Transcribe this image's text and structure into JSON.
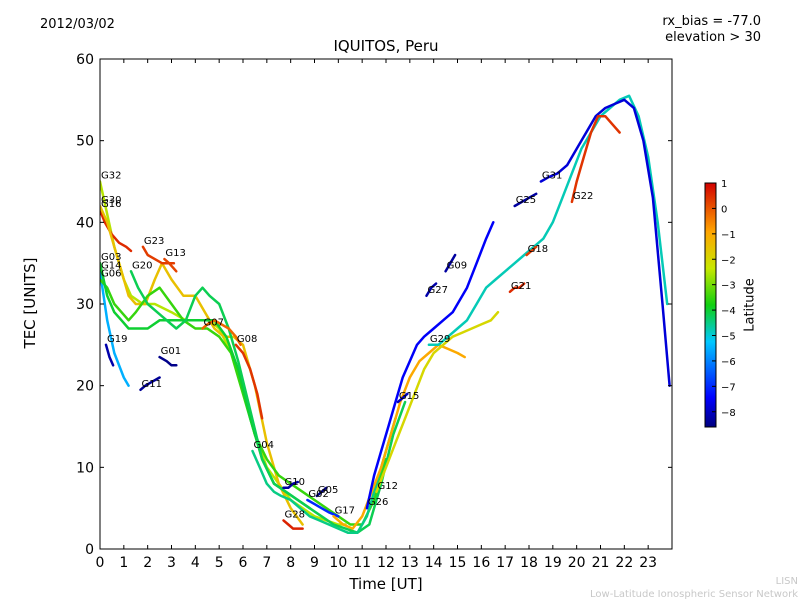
{
  "header": {
    "date": "2012/03/02",
    "rx_bias": "rx_bias = -77.0",
    "elevation": "elevation > 30"
  },
  "footer": {
    "line1": "LISN",
    "line2": "Low-Latitude Ionospheric Sensor Network"
  },
  "chart_data": {
    "type": "line",
    "title": "IQUITOS, Peru",
    "xlabel": "Time [UT]",
    "ylabel": "TEC [UNITS]",
    "xlim": [
      0,
      24
    ],
    "ylim": [
      0,
      60
    ],
    "xticks": [
      0,
      1,
      2,
      3,
      4,
      5,
      6,
      7,
      8,
      9,
      10,
      11,
      12,
      13,
      14,
      15,
      16,
      17,
      18,
      19,
      20,
      21,
      22,
      23
    ],
    "yticks": [
      0,
      10,
      20,
      30,
      40,
      50,
      60
    ],
    "colorbar": {
      "label": "Latitude",
      "range": [
        -8.6,
        1.0
      ],
      "ticks": [
        1,
        0,
        -1,
        -2,
        -3,
        -4,
        -5,
        -6,
        -7,
        -8
      ]
    },
    "series": [
      {
        "name": "G32",
        "lat": -2.5,
        "x": [
          0,
          0.3,
          0.6,
          1.0,
          1.3,
          1.8,
          2.3,
          3.0,
          3.6,
          4.2,
          4.6,
          5.0,
          5.5,
          6.0,
          6.5,
          7.0,
          7.5,
          8.0,
          8.5,
          9.0,
          9.5,
          10.0,
          10.3
        ],
        "y": [
          45,
          41,
          37,
          33,
          31,
          30,
          30,
          29,
          28,
          28,
          28,
          27,
          24,
          20,
          14,
          10,
          8,
          6,
          5,
          4,
          3.5,
          3,
          3
        ]
      },
      {
        "name": "G16",
        "lat": 0.5,
        "x": [
          0,
          0.2,
          0.5,
          0.8,
          1.1,
          1.3
        ],
        "y": [
          41.5,
          40,
          38.5,
          37.5,
          37,
          36.5
        ]
      },
      {
        "name": "G30",
        "lat": -1.5,
        "x": [
          0,
          0.3,
          0.6,
          0.9,
          1.2,
          1.5,
          1.9,
          2.3,
          2.6,
          3.0,
          3.5,
          4.0,
          4.4,
          4.8,
          5.2,
          5.6,
          6.0,
          6.5,
          7.0,
          7.5,
          8.0,
          8.5
        ],
        "y": [
          42,
          40,
          37,
          34,
          31,
          30,
          30,
          33,
          35,
          33,
          31,
          31,
          29,
          27,
          26,
          26,
          25,
          20,
          13,
          8,
          5,
          3
        ]
      },
      {
        "name": "G14",
        "lat": -5.5,
        "x": [
          0,
          0.3,
          0.6,
          1.0,
          1.2
        ],
        "y": [
          34,
          28,
          24,
          21,
          20
        ]
      },
      {
        "name": "G06",
        "lat": -3.5,
        "x": [
          0,
          0.3,
          0.6,
          0.9,
          1.2,
          1.5,
          2.0,
          2.5,
          3.0,
          3.5,
          4.0,
          4.5,
          5.0,
          5.5,
          6.0,
          6.5,
          7.0,
          7.5,
          8.0,
          8.5,
          9.0,
          9.5,
          10.0,
          10.5,
          11.0,
          11.5,
          12.0
        ],
        "y": [
          33,
          32,
          30,
          29,
          28,
          29,
          31,
          32,
          30,
          28,
          27,
          27,
          26,
          24,
          19,
          14,
          11,
          9,
          8,
          7,
          6,
          5,
          4,
          3,
          3,
          6,
          11
        ]
      },
      {
        "name": "G03",
        "lat": -4.0,
        "x": [
          0,
          0.3,
          0.6,
          0.9,
          1.2,
          1.5,
          2.0,
          2.5,
          3.0,
          3.5,
          4.0,
          4.3,
          4.8,
          5.3,
          5.8,
          6.3,
          6.8,
          7.3,
          7.8,
          8.3,
          8.8
        ],
        "y": [
          35,
          31,
          29,
          28,
          27,
          27,
          27,
          28,
          28,
          28,
          28,
          28,
          28,
          26,
          22,
          16,
          11,
          8,
          7,
          6,
          5
        ]
      },
      {
        "name": "G19",
        "lat": -8.2,
        "x": [
          0.25,
          0.4,
          0.55
        ],
        "y": [
          25,
          23.5,
          22.5
        ]
      },
      {
        "name": "G23",
        "lat": 0.3,
        "x": [
          1.8,
          2.0,
          2.3,
          2.6,
          2.9,
          3.1
        ],
        "y": [
          37,
          36,
          35.5,
          35,
          35,
          35
        ]
      },
      {
        "name": "G20",
        "lat": -4.2,
        "x": [
          1.3,
          1.6,
          2.0,
          2.4,
          2.8,
          3.2,
          3.6,
          4.0,
          4.3,
          4.6,
          5.0,
          5.4,
          5.8,
          6.3,
          6.8,
          7.3,
          7.8,
          8.3,
          8.8,
          9.3,
          9.8,
          10.3,
          10.8,
          11.3,
          11.8,
          12.3,
          12.8
        ],
        "y": [
          34,
          32,
          30,
          29,
          28,
          27,
          28,
          31,
          32,
          31,
          30,
          27,
          23,
          17,
          11,
          8,
          7,
          6,
          5,
          4,
          3,
          2.5,
          2,
          3,
          8,
          14,
          18
        ]
      },
      {
        "name": "G13",
        "lat": 0.2,
        "x": [
          2.7,
          2.9,
          3.2
        ],
        "y": [
          35.5,
          35,
          34
        ]
      },
      {
        "name": "G01",
        "lat": -8.5,
        "x": [
          2.5,
          2.8,
          3.0,
          3.2
        ],
        "y": [
          23.5,
          23,
          22.5,
          22.5
        ]
      },
      {
        "name": "G11",
        "lat": -8.4,
        "x": [
          1.7,
          1.9,
          2.2,
          2.5
        ],
        "y": [
          19.5,
          20,
          20.5,
          21
        ]
      },
      {
        "name": "G07",
        "lat": -0.2,
        "x": [
          4.3,
          4.5,
          4.8,
          5.1,
          5.4,
          5.7,
          5.9
        ],
        "y": [
          27,
          27.5,
          28,
          27.5,
          27,
          26,
          25
        ]
      },
      {
        "name": "G08",
        "lat": 0.4,
        "x": [
          5.7,
          6.0,
          6.3,
          6.6,
          6.8
        ],
        "y": [
          25,
          24,
          22,
          19,
          16
        ]
      },
      {
        "name": "G04",
        "lat": -4.5,
        "x": [
          6.4,
          6.7,
          7.0,
          7.3,
          7.6,
          8.0,
          8.4,
          8.8,
          9.2,
          9.6,
          10.0,
          10.4,
          10.8,
          11.2,
          11.6,
          12.0,
          12.4
        ],
        "y": [
          12,
          10,
          8,
          7,
          6.5,
          6,
          5,
          4,
          3.5,
          3,
          2.5,
          2,
          2,
          4,
          8,
          12,
          16
        ]
      },
      {
        "name": "G10",
        "lat": -8.3,
        "x": [
          7.7,
          7.9,
          8.1,
          8.3
        ],
        "y": [
          7.5,
          7.5,
          8,
          8.2
        ]
      },
      {
        "name": "G02",
        "lat": -7.0,
        "x": [
          8.7,
          9.0,
          9.3,
          9.6,
          10.0
        ],
        "y": [
          6,
          5.5,
          5,
          4.5,
          4
        ]
      },
      {
        "name": "G05",
        "lat": -8.6,
        "x": [
          9.1,
          9.3,
          9.5
        ],
        "y": [
          6.5,
          7,
          7.5
        ]
      },
      {
        "name": "G28",
        "lat": 0.6,
        "x": [
          7.7,
          7.9,
          8.1,
          8.3,
          8.5
        ],
        "y": [
          3.5,
          3,
          2.5,
          2.5,
          2.5
        ]
      },
      {
        "name": "G17",
        "lat": -1.0,
        "x": [
          9.8,
          10.2,
          10.6,
          11.0,
          11.4,
          11.8,
          12.2,
          12.6,
          13.0,
          13.4,
          13.8,
          14.2,
          14.6,
          15.0,
          15.3
        ],
        "y": [
          4,
          3,
          2.5,
          4,
          7,
          10,
          14,
          18,
          21,
          23,
          24,
          25,
          24.5,
          24,
          23.5
        ]
      },
      {
        "name": "G26",
        "lat": -7.5,
        "x": [
          11.2,
          11.5,
          11.8,
          12.1,
          12.4,
          12.7,
          13.0,
          13.3,
          13.6,
          14.0,
          14.4,
          14.8,
          15.0,
          15.4,
          15.8,
          16.2,
          16.5
        ],
        "y": [
          5,
          9,
          12,
          15,
          18,
          21,
          23,
          25,
          26,
          27,
          28,
          29,
          30,
          32,
          35,
          38,
          40
        ]
      },
      {
        "name": "G12",
        "lat": -2.0,
        "x": [
          11.6,
          12.0,
          12.4,
          12.8,
          13.2,
          13.6,
          14.0,
          14.4,
          14.8,
          15.2,
          15.6,
          16.0,
          16.4,
          16.7
        ],
        "y": [
          7,
          10,
          13,
          16,
          19,
          22,
          24,
          25,
          26,
          26.5,
          27,
          27.5,
          28,
          29
        ]
      },
      {
        "name": "G15",
        "lat": -8.0,
        "x": [
          12.5,
          12.7,
          12.9
        ],
        "y": [
          18,
          18.5,
          19
        ]
      },
      {
        "name": "G27",
        "lat": -8.2,
        "x": [
          13.7,
          13.9,
          14.1
        ],
        "y": [
          31,
          32,
          32.5
        ]
      },
      {
        "name": "G09",
        "lat": -8.3,
        "x": [
          14.5,
          14.7,
          14.9
        ],
        "y": [
          34,
          35,
          36
        ]
      },
      {
        "name": "G29",
        "lat": -4.8,
        "x": [
          13.8,
          14.2,
          14.6,
          15.0,
          15.4,
          15.8,
          16.2,
          16.6,
          17.0,
          17.4,
          17.8,
          18.2,
          18.6,
          19.0,
          19.4,
          19.8,
          20.2,
          20.6,
          21.0,
          21.4,
          21.8,
          22.2,
          22.6,
          23.0,
          23.4,
          23.8
        ],
        "y": [
          25,
          25,
          26,
          27,
          28,
          30,
          32,
          33,
          34,
          35,
          36,
          37,
          38,
          40,
          43,
          46,
          49,
          51,
          53,
          54,
          55,
          55.5,
          53,
          48,
          40,
          30
        ]
      },
      {
        "name": "G21",
        "lat": 0.5,
        "x": [
          17.2,
          17.4,
          17.6,
          17.8
        ],
        "y": [
          31.5,
          32,
          32,
          32.5
        ]
      },
      {
        "name": "G25",
        "lat": -8.3,
        "x": [
          17.4,
          17.7,
          18.0,
          18.3
        ],
        "y": [
          42,
          42.5,
          43,
          43.5
        ]
      },
      {
        "name": "G18",
        "lat": 0.3,
        "x": [
          17.9,
          18.1,
          18.3
        ],
        "y": [
          36,
          36.5,
          37
        ]
      },
      {
        "name": "G31",
        "lat": -7.8,
        "x": [
          18.5,
          18.8,
          19.2,
          19.6,
          20.0,
          20.4,
          20.8,
          21.2,
          21.6,
          22.0,
          22.4,
          22.8,
          23.2,
          23.6,
          23.9
        ],
        "y": [
          45,
          45.5,
          46,
          47,
          49,
          51,
          53,
          54,
          54.5,
          55,
          54,
          50,
          43,
          30,
          20
        ]
      },
      {
        "name": "G22",
        "lat": 0.4,
        "x": [
          19.8,
          20.0,
          20.3,
          20.6,
          20.9,
          21.2,
          21.5,
          21.8
        ],
        "y": [
          42.5,
          45,
          48,
          51,
          53,
          53,
          52,
          51
        ]
      }
    ]
  }
}
